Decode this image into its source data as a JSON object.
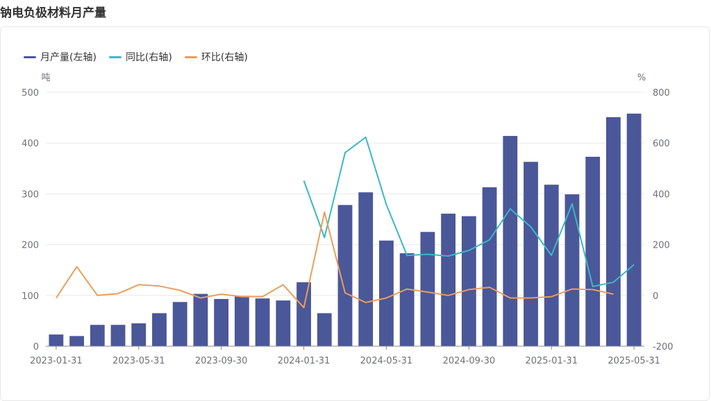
{
  "page": {
    "title": "钠电负极材料月产量"
  },
  "colors": {
    "bar": "#4a5799",
    "yoy": "#3bb8c6",
    "mom": "#eb9e5a",
    "grid": "#e8e8e8",
    "axis": "#8a8a8a"
  },
  "legend": [
    {
      "label": "月产量(左轴)",
      "color": "#4a5799"
    },
    {
      "label": "同比(右轴)",
      "color": "#3bb8c6"
    },
    {
      "label": "环比(右轴)",
      "color": "#eb9e5a"
    }
  ],
  "chart_data": {
    "type": "bar",
    "title": "钠电负极材料月产量",
    "x": [
      "2023-01-31",
      "2023-02-28",
      "2023-03-31",
      "2023-04-30",
      "2023-05-31",
      "2023-06-30",
      "2023-07-31",
      "2023-08-31",
      "2023-09-30",
      "2023-10-31",
      "2023-11-30",
      "2023-12-31",
      "2024-01-31",
      "2024-02-29",
      "2024-03-31",
      "2024-04-30",
      "2024-05-31",
      "2024-06-30",
      "2024-07-31",
      "2024-08-31",
      "2024-09-30",
      "2024-10-31",
      "2024-11-30",
      "2024-12-31",
      "2025-01-31",
      "2025-02-28",
      "2025-03-31",
      "2025-04-30",
      "2025-05-31"
    ],
    "x_tick_labels": [
      "2023-01-31",
      "2023-05-31",
      "2023-09-30",
      "2024-01-31",
      "2024-05-31",
      "2024-09-30",
      "2025-01-31",
      "2025-05-31"
    ],
    "left_axis": {
      "unit": "吨",
      "ticks": [
        "0",
        "100",
        "200",
        "300",
        "400",
        "500"
      ],
      "range": [
        0,
        500
      ]
    },
    "right_axis": {
      "unit": "%",
      "ticks": [
        "-200",
        "0",
        "200",
        "400",
        "600",
        "800"
      ],
      "range": [
        -200,
        800
      ]
    },
    "series": [
      {
        "name": "月产量(左轴)",
        "kind": "bar",
        "axis": "left",
        "values": [
          23,
          20,
          42,
          42,
          45,
          65,
          87,
          103,
          93,
          99,
          94,
          90,
          126,
          65,
          278,
          303,
          208,
          183,
          225,
          261,
          256,
          313,
          414,
          363,
          318,
          299,
          373,
          451,
          458
        ]
      },
      {
        "name": "同比(右轴)",
        "kind": "line",
        "axis": "right",
        "values": [
          null,
          null,
          null,
          null,
          null,
          null,
          null,
          null,
          null,
          null,
          null,
          null,
          452,
          228,
          562,
          623,
          358,
          157,
          162,
          155,
          177,
          219,
          341,
          270,
          158,
          361,
          35,
          52,
          121
        ]
      },
      {
        "name": "环比(右轴)",
        "kind": "line",
        "axis": "right",
        "values": [
          -10,
          113,
          0,
          7,
          42,
          37,
          20,
          -10,
          5,
          -5,
          -5,
          42,
          -48,
          328,
          10,
          -28,
          -10,
          25,
          13,
          0,
          23,
          32,
          -10,
          -10,
          -5,
          25,
          23,
          5,
          null
        ]
      }
    ]
  }
}
